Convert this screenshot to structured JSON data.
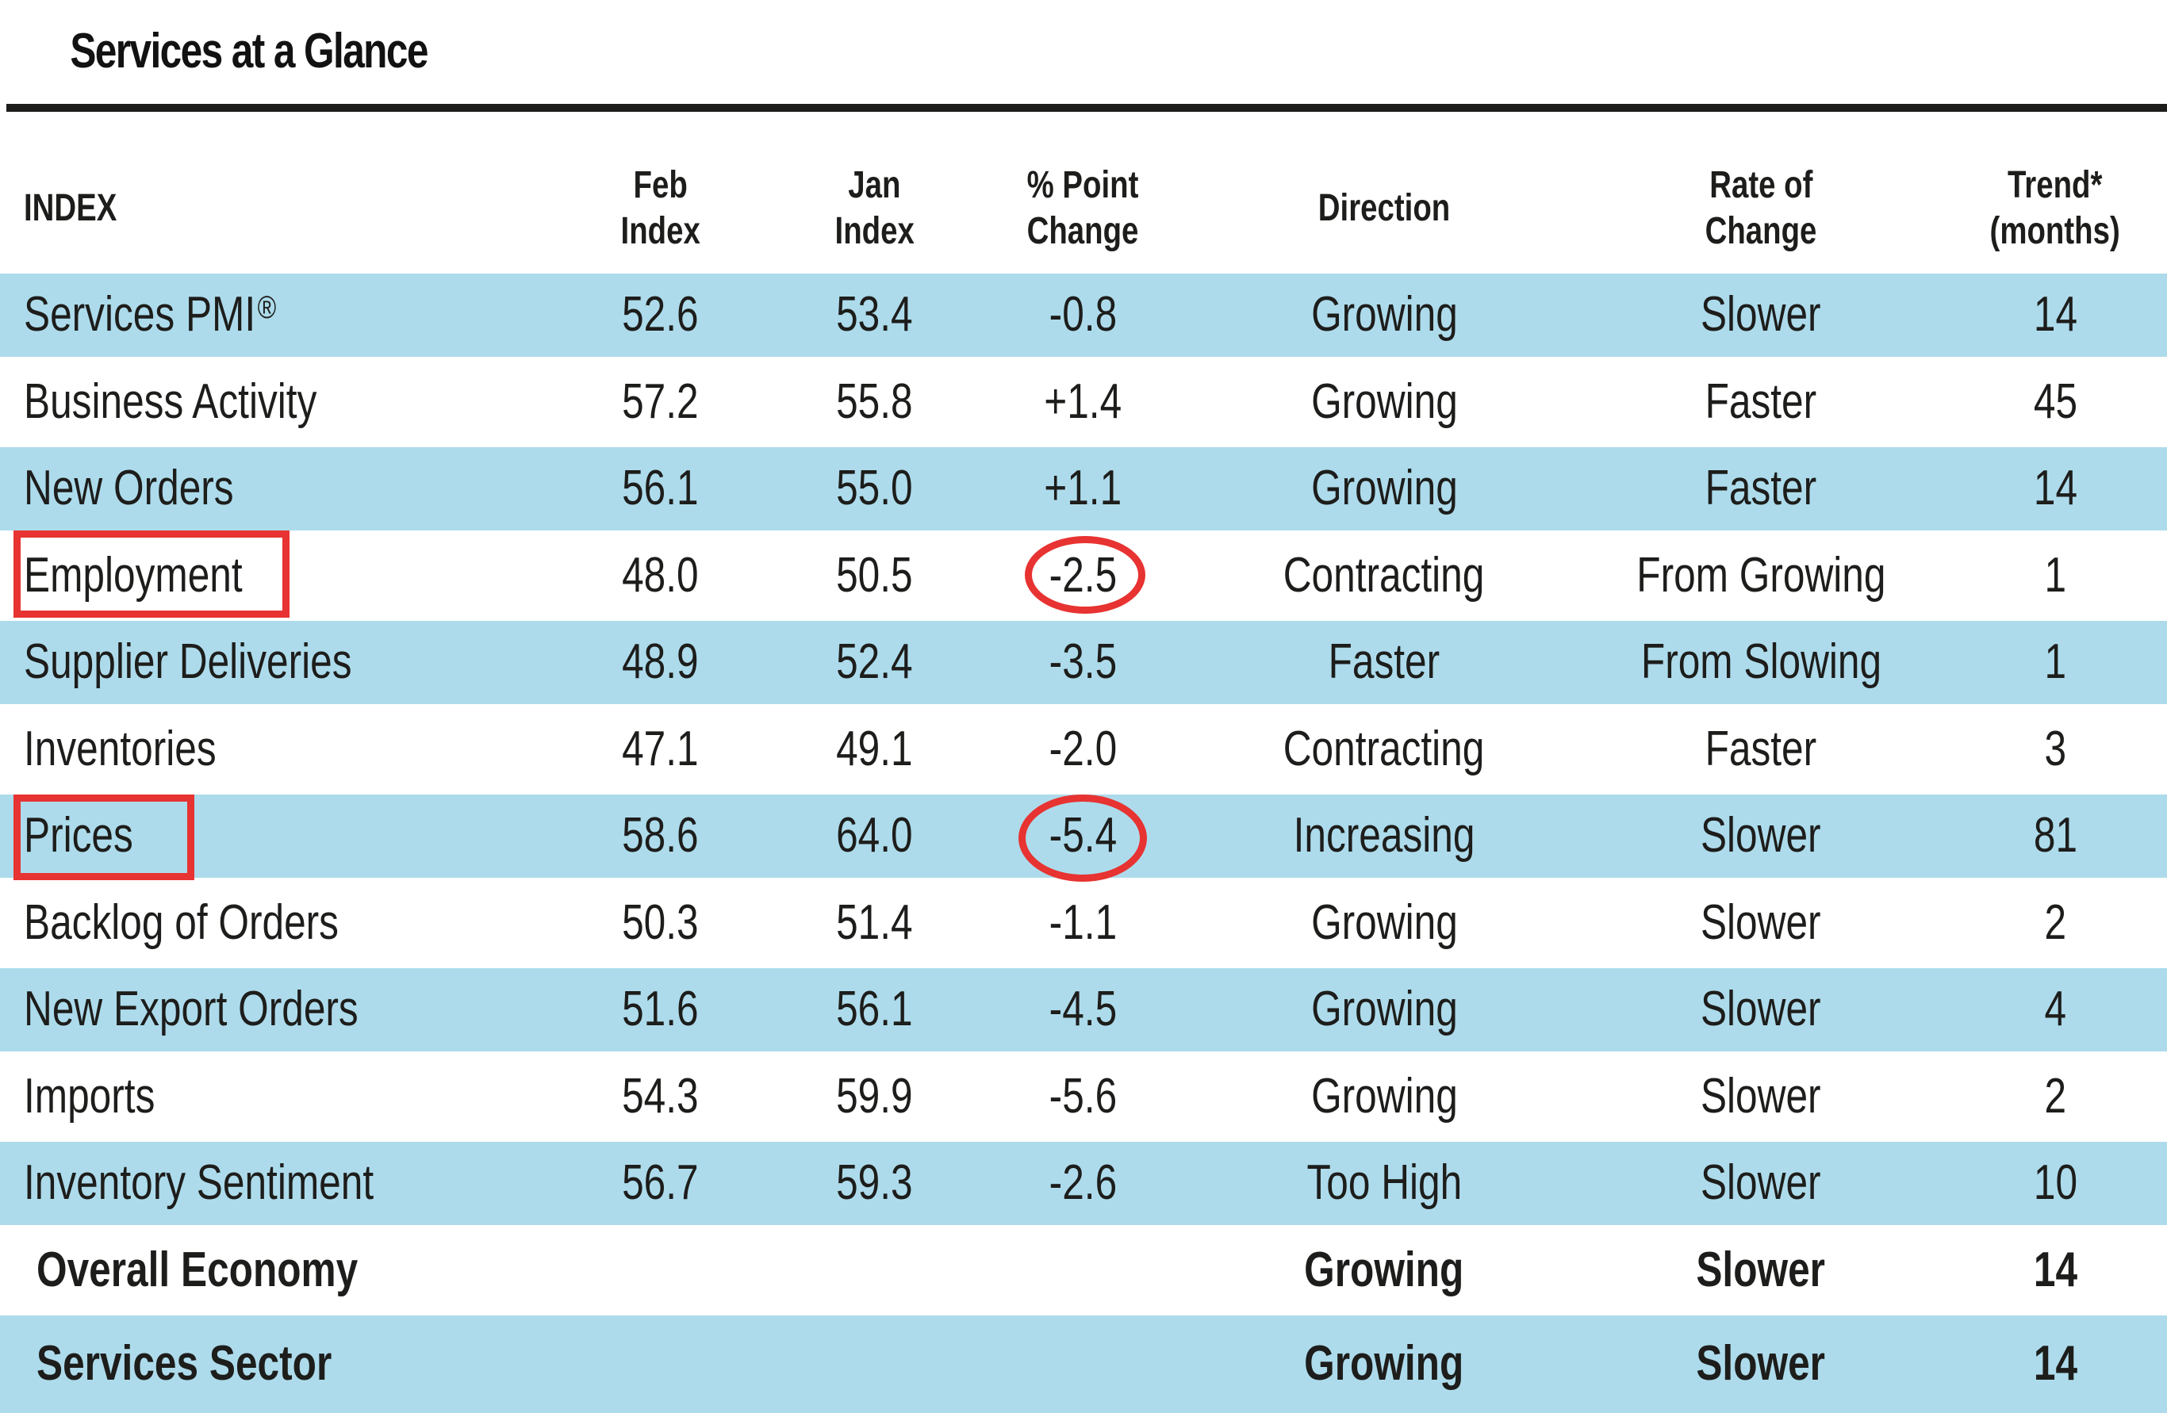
{
  "title": "Services at a Glance",
  "header": {
    "index": "INDEX",
    "feb_l1": "Feb",
    "feb_l2": "Index",
    "jan_l1": "Jan",
    "jan_l2": "Index",
    "chg_l1": "% Point",
    "chg_l2": "Change",
    "dir": "Direction",
    "rate_l1": "Rate of",
    "rate_l2": "Change",
    "trend_l1": "Trend*",
    "trend_l2": "(months)"
  },
  "rows": [
    {
      "name": "Services PMI",
      "sup": "®",
      "feb": "52.6",
      "jan": "53.4",
      "chg": "-0.8",
      "dir": "Growing",
      "rate": "Slower",
      "trend": "14"
    },
    {
      "name": "Business Activity",
      "feb": "57.2",
      "jan": "55.8",
      "chg": "+1.4",
      "dir": "Growing",
      "rate": "Faster",
      "trend": "45"
    },
    {
      "name": "New Orders",
      "feb": "56.1",
      "jan": "55.0",
      "chg": "+1.1",
      "dir": "Growing",
      "rate": "Faster",
      "trend": "14"
    },
    {
      "name": "Employment",
      "feb": "48.0",
      "jan": "50.5",
      "chg": "-2.5",
      "dir": "Contracting",
      "rate": "From Growing",
      "trend": "1"
    },
    {
      "name": "Supplier Deliveries",
      "feb": "48.9",
      "jan": "52.4",
      "chg": "-3.5",
      "dir": "Faster",
      "rate": "From Slowing",
      "trend": "1"
    },
    {
      "name": "Inventories",
      "feb": "47.1",
      "jan": "49.1",
      "chg": "-2.0",
      "dir": "Contracting",
      "rate": "Faster",
      "trend": "3"
    },
    {
      "name": "Prices",
      "feb": "58.6",
      "jan": "64.0",
      "chg": "-5.4",
      "dir": "Increasing",
      "rate": "Slower",
      "trend": "81"
    },
    {
      "name": "Backlog of Orders",
      "feb": "50.3",
      "jan": "51.4",
      "chg": "-1.1",
      "dir": "Growing",
      "rate": "Slower",
      "trend": "2"
    },
    {
      "name": "New Export Orders",
      "feb": "51.6",
      "jan": "56.1",
      "chg": "-4.5",
      "dir": "Growing",
      "rate": "Slower",
      "trend": "4"
    },
    {
      "name": "Imports",
      "feb": "54.3",
      "jan": "59.9",
      "chg": "-5.6",
      "dir": "Growing",
      "rate": "Slower",
      "trend": "2"
    },
    {
      "name": "Inventory Sentiment",
      "feb": "56.7",
      "jan": "59.3",
      "chg": "-2.6",
      "dir": "Too High",
      "rate": "Slower",
      "trend": "10"
    },
    {
      "name": "Overall Economy",
      "feb": "",
      "jan": "",
      "chg": "",
      "dir": "Growing",
      "rate": "Slower",
      "trend": "14"
    },
    {
      "name": "Services Sector",
      "feb": "",
      "jan": "",
      "chg": "",
      "dir": "Growing",
      "rate": "Slower",
      "trend": "14"
    }
  ],
  "annotations": {
    "highlight_color": "#e73331",
    "boxed_labels": [
      "Employment",
      "Prices"
    ],
    "circled_changes": [
      {
        "row": "Employment",
        "value": "-2.5"
      },
      {
        "row": "Prices",
        "value": "-5.4"
      }
    ]
  },
  "colors": {
    "row_shade": "#addbeb",
    "text": "#1d1d1b",
    "annotation_red": "#e73331"
  }
}
